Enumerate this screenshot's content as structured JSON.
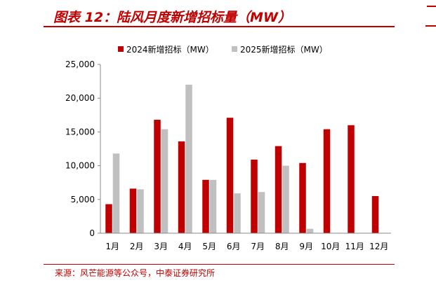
{
  "header": {
    "title": "图表 12：陆风月度新增招标量（MW）"
  },
  "source": {
    "text": "来源：风芒能源等公众号，中泰证券研究所"
  },
  "colors": {
    "accent": "#c00000",
    "series_2024": "#c00000",
    "series_2025": "#c0c0c0",
    "axis": "#888888"
  },
  "chart_data": {
    "type": "bar",
    "categories": [
      "1月",
      "2月",
      "3月",
      "4月",
      "5月",
      "6月",
      "7月",
      "8月",
      "9月",
      "10月",
      "11月",
      "12月"
    ],
    "series": [
      {
        "name": "2024新增招标（MW）",
        "values": [
          4300,
          6600,
          16800,
          13600,
          7900,
          17100,
          10900,
          12900,
          10400,
          15400,
          16000,
          5500
        ]
      },
      {
        "name": "2025新增招标（MW）",
        "values": [
          11800,
          6500,
          15400,
          22000,
          7900,
          5900,
          6100,
          10000,
          650,
          null,
          null,
          null
        ]
      }
    ],
    "yticks": [
      "0",
      "5,000",
      "10,000",
      "15,000",
      "20,000",
      "25,000"
    ],
    "ylim": [
      0,
      25000
    ],
    "grid": false,
    "legend_position": "top"
  }
}
